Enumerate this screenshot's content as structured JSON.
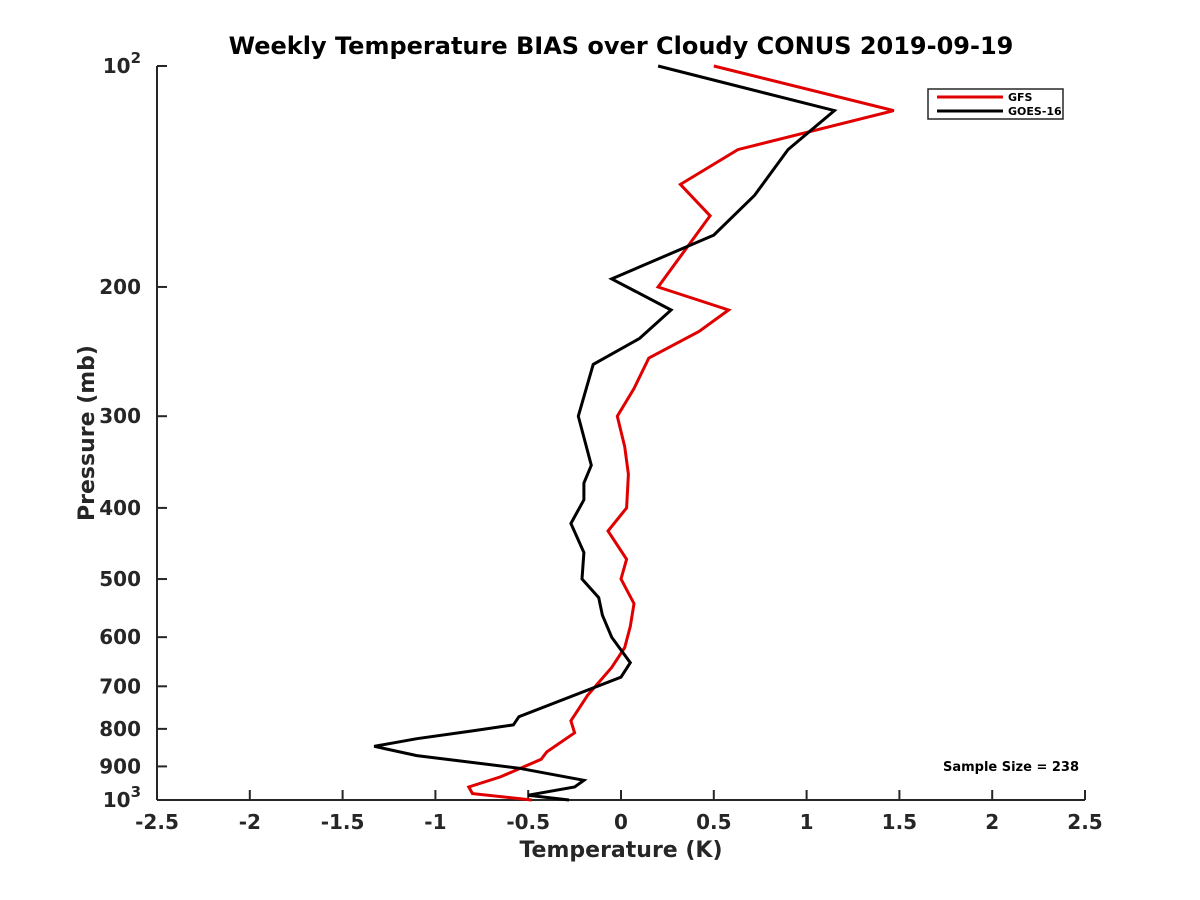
{
  "chart_data": {
    "type": "line",
    "title": "Weekly Temperature BIAS over Cloudy CONUS 2019-09-19",
    "xlabel": "Temperature (K)",
    "ylabel": "Pressure (mb)",
    "xlim": [
      -2.5,
      2.5
    ],
    "ylim": [
      100,
      1000
    ],
    "yscale": "log",
    "y_reversed": true,
    "xticks": [
      -2.5,
      -2,
      -1.5,
      -1,
      -0.5,
      0,
      0.5,
      1,
      1.5,
      2,
      2.5
    ],
    "xtick_labels": [
      "-2.5",
      "-2",
      "-1.5",
      "-1",
      "-0.5",
      "0",
      "0.5",
      "1",
      "1.5",
      "2",
      "2.5"
    ],
    "yticks": [
      {
        "value": 100,
        "base": "10",
        "exp": "2"
      },
      {
        "value": 200,
        "label": "200"
      },
      {
        "value": 300,
        "label": "300"
      },
      {
        "value": 400,
        "label": "400"
      },
      {
        "value": 500,
        "label": "500"
      },
      {
        "value": 600,
        "label": "600"
      },
      {
        "value": 700,
        "label": "700"
      },
      {
        "value": 800,
        "label": "800"
      },
      {
        "value": 900,
        "label": "900"
      },
      {
        "value": 1000,
        "base": "10",
        "exp": "3"
      }
    ],
    "legend_position": "top-right",
    "annotation": "Sample Size = 238",
    "series": [
      {
        "name": "GFS",
        "color": "#e00000",
        "points": [
          [
            0.5,
            100
          ],
          [
            1.47,
            115
          ],
          [
            0.63,
            130
          ],
          [
            0.32,
            145
          ],
          [
            0.48,
            160
          ],
          [
            0.2,
            200
          ],
          [
            0.58,
            215
          ],
          [
            0.42,
            230
          ],
          [
            0.15,
            250
          ],
          [
            0.07,
            275
          ],
          [
            -0.02,
            300
          ],
          [
            0.02,
            330
          ],
          [
            0.04,
            360
          ],
          [
            0.03,
            400
          ],
          [
            -0.07,
            430
          ],
          [
            0.03,
            470
          ],
          [
            0.0,
            500
          ],
          [
            0.07,
            540
          ],
          [
            0.05,
            580
          ],
          [
            0.02,
            620
          ],
          [
            -0.05,
            660
          ],
          [
            -0.18,
            720
          ],
          [
            -0.27,
            780
          ],
          [
            -0.25,
            810
          ],
          [
            -0.4,
            860
          ],
          [
            -0.43,
            880
          ],
          [
            -0.65,
            930
          ],
          [
            -0.82,
            960
          ],
          [
            -0.8,
            980
          ],
          [
            -0.48,
            1000
          ]
        ]
      },
      {
        "name": "GOES-16",
        "color": "#000000",
        "points": [
          [
            0.2,
            100
          ],
          [
            1.15,
            115
          ],
          [
            0.9,
            130
          ],
          [
            0.72,
            150
          ],
          [
            0.5,
            170
          ],
          [
            -0.05,
            195
          ],
          [
            0.27,
            215
          ],
          [
            0.1,
            235
          ],
          [
            -0.15,
            255
          ],
          [
            -0.23,
            300
          ],
          [
            -0.16,
            350
          ],
          [
            -0.2,
            370
          ],
          [
            -0.2,
            390
          ],
          [
            -0.27,
            420
          ],
          [
            -0.2,
            460
          ],
          [
            -0.21,
            500
          ],
          [
            -0.12,
            530
          ],
          [
            -0.1,
            560
          ],
          [
            -0.05,
            600
          ],
          [
            0.05,
            650
          ],
          [
            0.0,
            680
          ],
          [
            -0.55,
            770
          ],
          [
            -0.58,
            790
          ],
          [
            -0.8,
            805
          ],
          [
            -1.1,
            825
          ],
          [
            -1.33,
            845
          ],
          [
            -1.1,
            870
          ],
          [
            -0.55,
            905
          ],
          [
            -0.2,
            940
          ],
          [
            -0.25,
            960
          ],
          [
            -0.5,
            985
          ],
          [
            -0.28,
            1000
          ]
        ]
      }
    ]
  }
}
